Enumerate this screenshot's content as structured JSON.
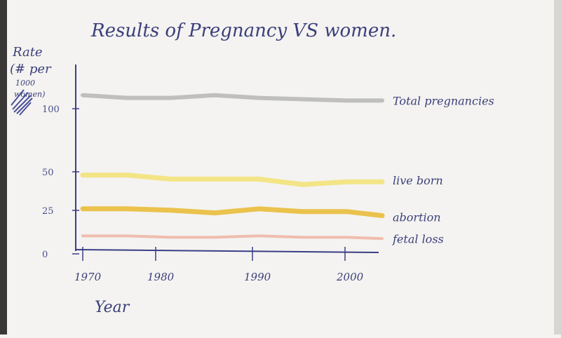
{
  "chart_data": {
    "type": "line",
    "title": "Results of Pregnancy VS women.",
    "xlabel": "Year",
    "ylabel_lines": [
      "Rate",
      "(# per",
      "1000",
      "women)"
    ],
    "x_ticks": [
      "1970",
      "1980",
      "1990",
      "2000"
    ],
    "y_ticks": [
      0,
      25,
      50,
      100
    ],
    "x": [
      1970,
      1975,
      1980,
      1985,
      1990,
      1995,
      2000,
      2004
    ],
    "series": [
      {
        "name": "Total pregnancies",
        "color": "#b9b9b9",
        "values": [
          110,
          108,
          108,
          110,
          108,
          107,
          106,
          106
        ]
      },
      {
        "name": "live born",
        "color": "#f3e27a",
        "values": [
          51,
          51,
          48,
          48,
          48,
          44,
          46,
          46
        ]
      },
      {
        "name": "abortion",
        "color": "#e9bd3a",
        "values": [
          26,
          26,
          25,
          23,
          26,
          24,
          24,
          21
        ]
      },
      {
        "name": "fetal loss",
        "color": "#f0b7a6",
        "values": [
          6,
          6,
          5,
          5,
          6,
          5,
          5,
          4
        ]
      }
    ]
  }
}
